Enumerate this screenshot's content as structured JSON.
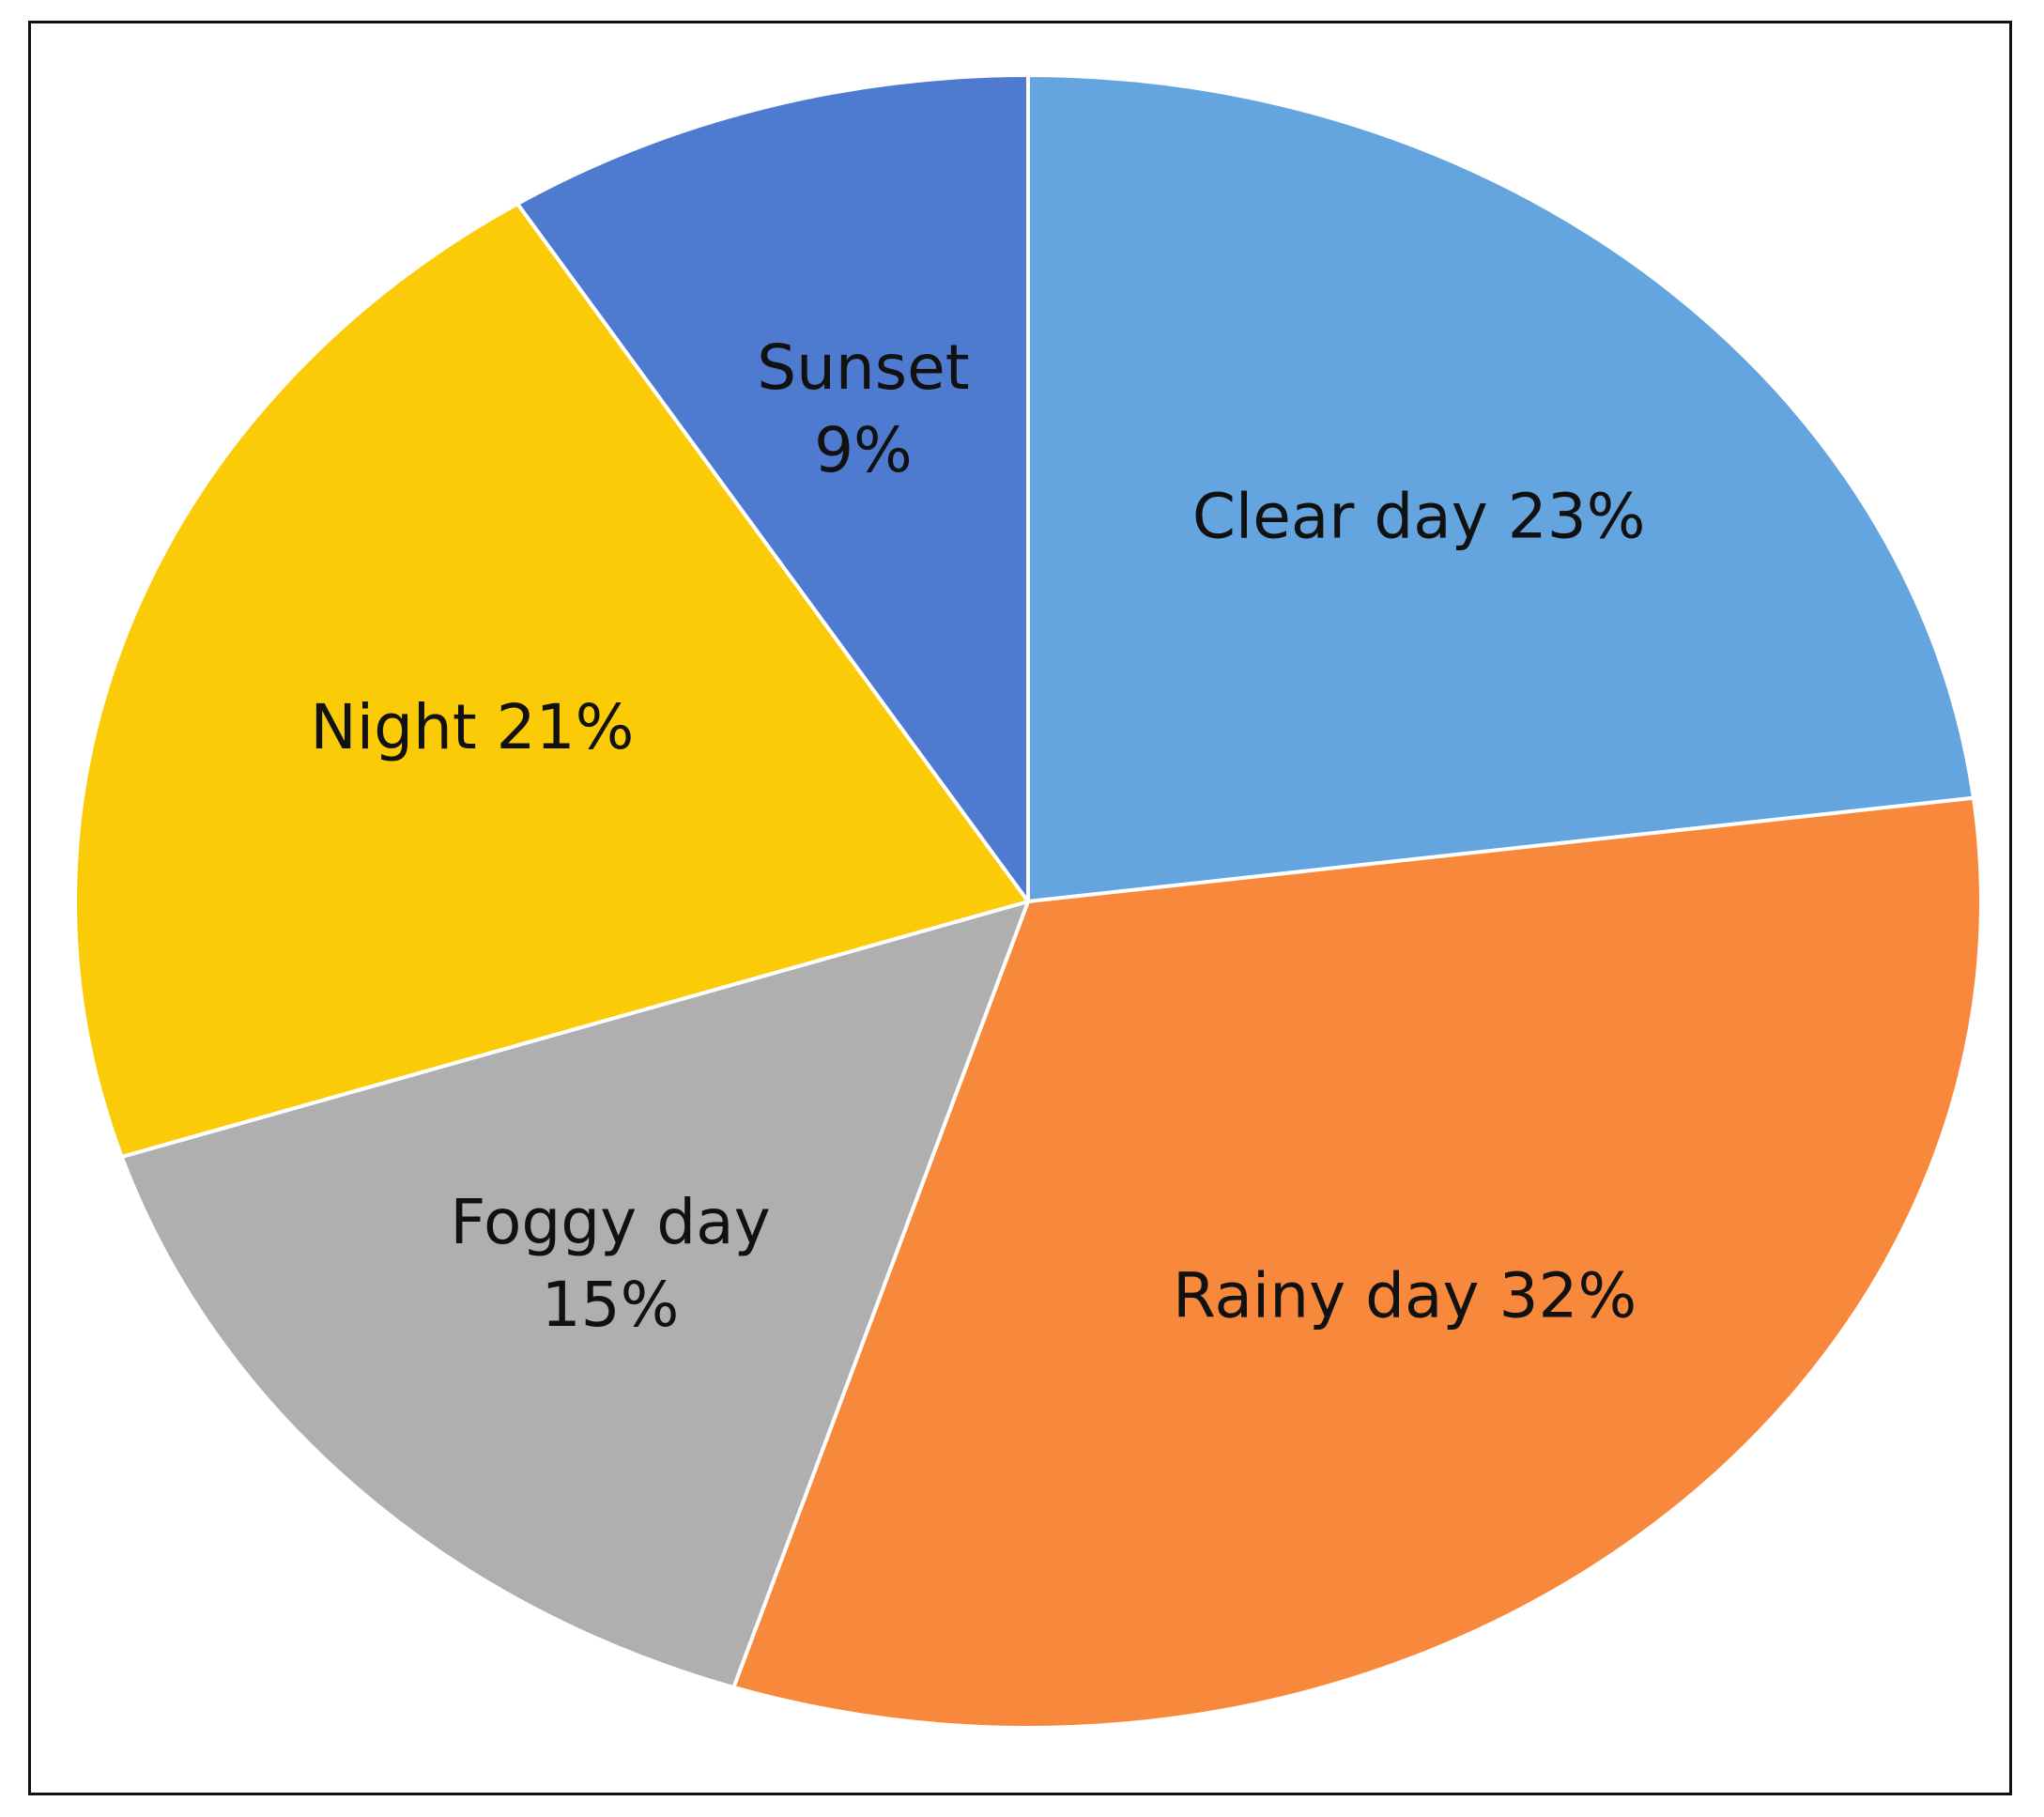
{
  "chart_data": {
    "type": "pie",
    "slices": [
      {
        "label": "Clear day",
        "value": 23,
        "color": "#64A5E0",
        "label_lines": [
          "Clear day 23%"
        ]
      },
      {
        "label": "Rainy day",
        "value": 32,
        "color": "#F8893C",
        "label_lines": [
          "Rainy day 32%"
        ]
      },
      {
        "label": "Foggy day",
        "value": 15,
        "color": "#AFAFAF",
        "label_lines": [
          "Foggy day",
          "15%"
        ]
      },
      {
        "label": "Night",
        "value": 21,
        "color": "#FCCB07",
        "label_lines": [
          "Night 21%"
        ]
      },
      {
        "label": "Sunset",
        "value": 9,
        "color": "#4E7ACF",
        "label_lines": [
          "Sunset",
          "9%"
        ]
      }
    ],
    "start_angle": "12 o'clock",
    "direction": "clockwise",
    "legend": "none"
  }
}
